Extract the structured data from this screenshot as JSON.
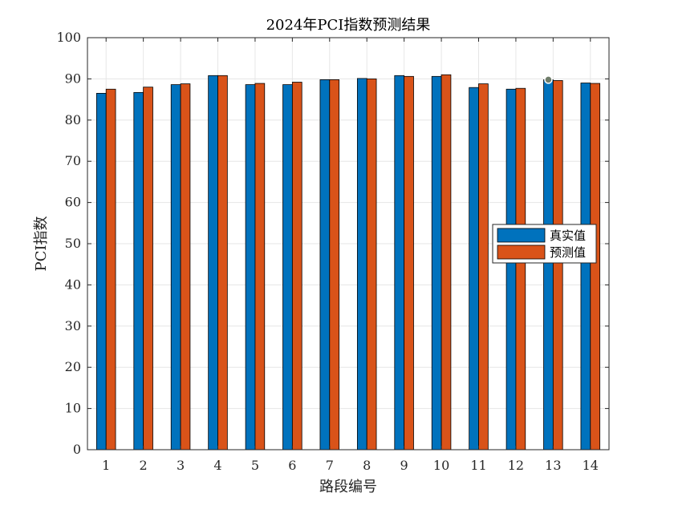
{
  "chart_data": {
    "type": "bar",
    "title": "2024年PCI指数预测结果",
    "xlabel": "路段编号",
    "ylabel": "PCI指数",
    "categories": [
      "1",
      "2",
      "3",
      "4",
      "5",
      "6",
      "7",
      "8",
      "9",
      "10",
      "11",
      "12",
      "13",
      "14"
    ],
    "ylim": [
      0,
      100
    ],
    "yticks": [
      0,
      10,
      20,
      30,
      40,
      50,
      60,
      70,
      80,
      90,
      100
    ],
    "grid": true,
    "legend_position": "right",
    "series": [
      {
        "name": "真实值",
        "color": "#0072BD",
        "values": [
          86.5,
          86.7,
          88.6,
          90.8,
          88.6,
          88.6,
          89.8,
          90.1,
          90.8,
          90.6,
          87.9,
          87.5,
          89.8,
          89.0
        ]
      },
      {
        "name": "预测值",
        "color": "#D95319",
        "values": [
          87.5,
          88.0,
          88.8,
          90.8,
          88.9,
          89.2,
          89.8,
          90.0,
          90.6,
          91.0,
          88.8,
          87.7,
          89.6,
          88.9
        ]
      }
    ],
    "annotations": [
      {
        "type": "datatip-marker",
        "series": "真实值",
        "category": "13",
        "value": 89.8
      }
    ]
  }
}
